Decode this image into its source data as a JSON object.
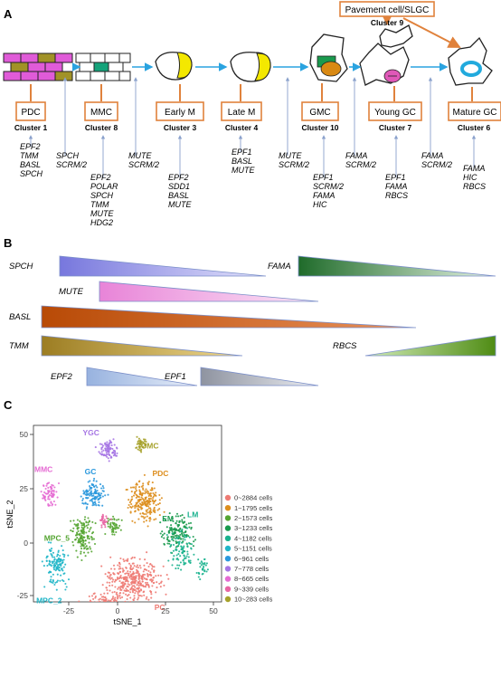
{
  "panel_a": {
    "label": "A",
    "stages": [
      {
        "name": "PDC",
        "cluster": "Cluster 1"
      },
      {
        "name": "MMC",
        "cluster": "Cluster 8"
      },
      {
        "name": "Early M",
        "cluster": "Cluster 3"
      },
      {
        "name": "Late M",
        "cluster": "Cluster 4"
      },
      {
        "name": "GMC",
        "cluster": "Cluster 10"
      },
      {
        "name": "Young GC",
        "cluster": "Cluster 7"
      },
      {
        "name": "Mature GC",
        "cluster": "Cluster 6"
      }
    ],
    "pavement": {
      "name": "Pavement cell/SLGC",
      "cluster": "Cluster 9"
    },
    "gene_groups": [
      [
        "EPF2",
        "TMM",
        "BASL",
        "SPCH"
      ],
      [
        "SPCH",
        "SCRM/2"
      ],
      [
        "EPF2",
        "POLAR",
        "SPCH",
        "TMM",
        "MUTE",
        "HDG2"
      ],
      [
        "MUTE",
        "SCRM/2"
      ],
      [
        "EPF2",
        "SDD1",
        "BASL",
        "MUTE"
      ],
      [
        "EPF1",
        "BASL",
        "MUTE"
      ],
      [
        "MUTE",
        "SCRM/2"
      ],
      [
        "EPF1",
        "SCRM/2",
        "FAMA",
        "HIC"
      ],
      [
        "FAMA",
        "SCRM/2"
      ],
      [
        "EPF1",
        "FAMA",
        "RBCS"
      ],
      [
        "FAMA",
        "SCRM/2"
      ],
      [
        "FAMA",
        "HIC",
        "RBCS"
      ]
    ]
  },
  "panel_b": {
    "label": "B",
    "bars": [
      {
        "gene": "SPCH",
        "color_from": "#7777dd",
        "color_to": "#e2e2fb",
        "direction": "decreasing"
      },
      {
        "gene": "FAMA",
        "color_from": "#1f6b2a",
        "color_to": "#e6f4e3",
        "direction": "decreasing"
      },
      {
        "gene": "MUTE",
        "color_from": "#e884d8",
        "color_to": "#fbe6f6",
        "direction": "decreasing"
      },
      {
        "gene": "BASL",
        "color_from": "#b84a06",
        "color_to": "#e9915a",
        "direction": "decreasing"
      },
      {
        "gene": "TMM",
        "color_from": "#9c7d22",
        "color_to": "#efd88e",
        "direction": "decreasing"
      },
      {
        "gene": "RBCS",
        "color_from": "#d2ecb8",
        "color_to": "#4f8c14",
        "direction": "increasing"
      },
      {
        "gene": "EPF2",
        "color_from": "#97b2df",
        "color_to": "#e9eff9",
        "direction": "decreasing"
      },
      {
        "gene": "EPF1",
        "color_from": "#8e93a0",
        "color_to": "#ebedf1",
        "direction": "decreasing"
      }
    ]
  },
  "panel_c": {
    "label": "C",
    "xlabel": "tSNE_1",
    "ylabel": "tSNE_2",
    "xticks": [
      "-25",
      "0",
      "25",
      "50"
    ],
    "yticks": [
      "50",
      "25",
      "0",
      "-25"
    ],
    "legend": [
      {
        "text": "0~2884 cells",
        "color": "#ee7b74"
      },
      {
        "text": "1~1795 cells",
        "color": "#dd8e1e"
      },
      {
        "text": "2~1573 cells",
        "color": "#55a532"
      },
      {
        "text": "3~1233 cells",
        "color": "#1a9a4e"
      },
      {
        "text": "4~1182 cells",
        "color": "#1ab28e"
      },
      {
        "text": "5~1151 cells",
        "color": "#20b6c8"
      },
      {
        "text": "6~961 cells",
        "color": "#2a98dd"
      },
      {
        "text": "7~778 cells",
        "color": "#a676e4"
      },
      {
        "text": "8~665 cells",
        "color": "#e56bd3"
      },
      {
        "text": "9~339 cells",
        "color": "#e865a4"
      },
      {
        "text": "10~283 cells",
        "color": "#a6a12a"
      }
    ],
    "clusters": [
      {
        "label": "PC",
        "color": "#ee7b74"
      },
      {
        "label": "PDC",
        "color": "#dd8e1e"
      },
      {
        "label": "MPC_5",
        "color": "#55a532"
      },
      {
        "label": "EM",
        "color": "#1a9a4e"
      },
      {
        "label": "LM",
        "color": "#1ab28e"
      },
      {
        "label": "MPC_2",
        "color": "#20b6c8"
      },
      {
        "label": "GC",
        "color": "#2a98dd"
      },
      {
        "label": "YGC",
        "color": "#a676e4"
      },
      {
        "label": "MMC",
        "color": "#e56bd3"
      },
      {
        "label": "GMC",
        "color": "#a6a12a"
      }
    ]
  }
}
